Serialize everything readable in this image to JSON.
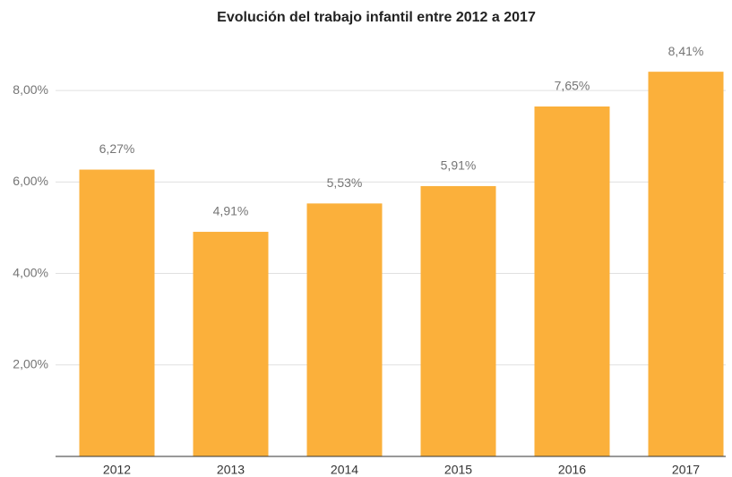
{
  "chart_data": {
    "type": "bar",
    "title": "Evolución del trabajo infantil entre 2012 a 2017",
    "categories": [
      "2012",
      "2013",
      "2014",
      "2015",
      "2016",
      "2017"
    ],
    "values": [
      6.27,
      4.91,
      5.53,
      5.91,
      7.65,
      8.41
    ],
    "value_labels": [
      "6,27%",
      "4,91%",
      "5,53%",
      "5,91%",
      "7,65%",
      "8,41%"
    ],
    "color": "#fbb03b",
    "ylim": [
      0,
      9
    ],
    "yticks": [
      {
        "value": 2,
        "label": "2,00%"
      },
      {
        "value": 4,
        "label": "4,00%"
      },
      {
        "value": 6,
        "label": "6,00%"
      },
      {
        "value": 8,
        "label": "8,00%"
      }
    ],
    "grid": true
  }
}
